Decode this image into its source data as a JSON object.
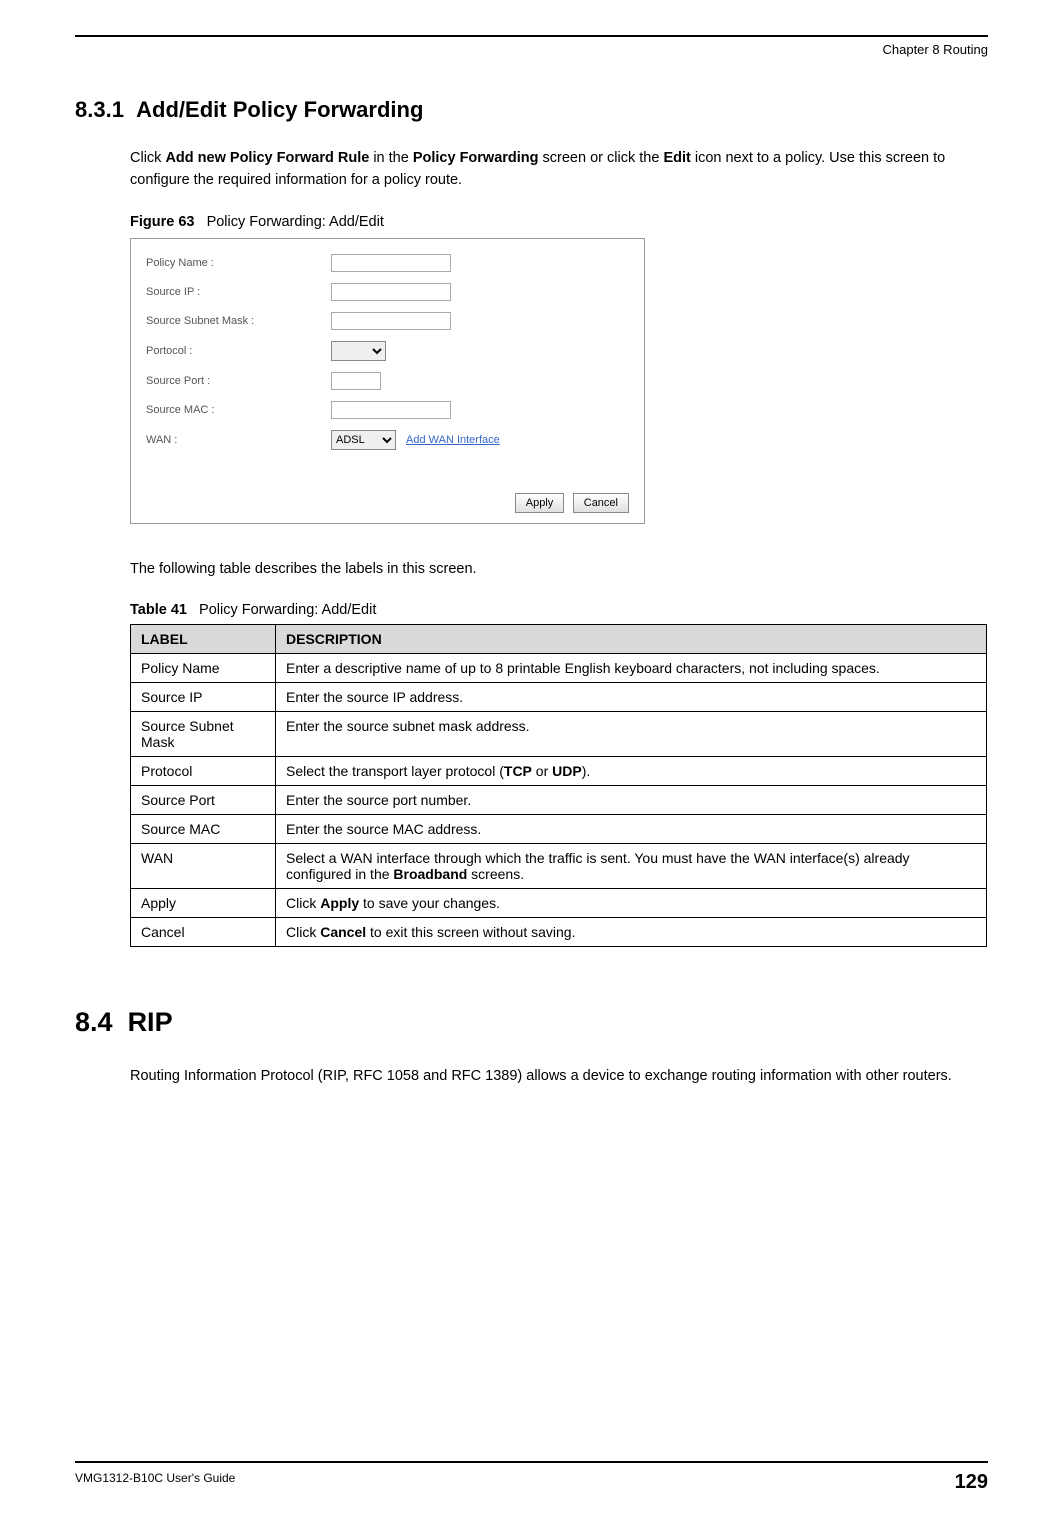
{
  "header": {
    "chapter": "Chapter 8 Routing"
  },
  "section_831": {
    "number": "8.3.1",
    "title": "Add/Edit Policy Forwarding",
    "intro_pre": "Click ",
    "intro_b1": "Add new Policy Forward Rule",
    "intro_mid1": " in the ",
    "intro_b2": "Policy Forwarding",
    "intro_mid2": " screen or click the ",
    "intro_b3": "Edit",
    "intro_post": " icon next to a policy. Use this screen to configure the required information for a policy route."
  },
  "figure63": {
    "label": "Figure 63",
    "caption": "Policy Forwarding: Add/Edit",
    "form": {
      "policy_name_label": "Policy Name :",
      "source_ip_label": "Source IP :",
      "source_subnet_label": "Source Subnet Mask :",
      "protocol_label": "Portocol :",
      "source_port_label": "Source Port :",
      "source_mac_label": "Source MAC :",
      "wan_label": "WAN :",
      "wan_selected": "ADSL",
      "add_wan_link": "Add WAN Interface",
      "apply_btn": "Apply",
      "cancel_btn": "Cancel"
    }
  },
  "table_intro": "The following table describes the labels in this screen.",
  "table41": {
    "label": "Table 41",
    "caption": "Policy Forwarding: Add/Edit",
    "header_label": "LABEL",
    "header_desc": "DESCRIPTION",
    "rows": [
      {
        "label": "Policy Name",
        "desc": "Enter a descriptive name of up to 8 printable English keyboard characters, not including spaces."
      },
      {
        "label": "Source IP",
        "desc": "Enter the source IP address."
      },
      {
        "label": "Source Subnet Mask",
        "desc": "Enter the source subnet mask address."
      },
      {
        "label": "Protocol",
        "desc_parts": [
          "Select the transport layer protocol (",
          "TCP",
          " or ",
          "UDP",
          ")."
        ]
      },
      {
        "label": "Source Port",
        "desc": "Enter the source port number."
      },
      {
        "label": "Source MAC",
        "desc": "Enter the source MAC address."
      },
      {
        "label": "WAN",
        "desc_parts": [
          "Select a WAN interface through which the traffic is sent. You must have the WAN interface(s) already configured in the ",
          "Broadband",
          " screens."
        ]
      },
      {
        "label": "Apply",
        "desc_parts": [
          "Click ",
          "Apply",
          " to save your changes."
        ]
      },
      {
        "label": "Cancel",
        "desc_parts": [
          "Click ",
          "Cancel",
          " to exit this screen without saving."
        ]
      }
    ]
  },
  "section_84": {
    "number": "8.4",
    "title": "RIP",
    "body": "Routing Information Protocol (RIP, RFC 1058 and RFC 1389) allows a device to exchange routing information with other routers."
  },
  "footer": {
    "guide": "VMG1312-B10C User's Guide",
    "page": "129"
  }
}
